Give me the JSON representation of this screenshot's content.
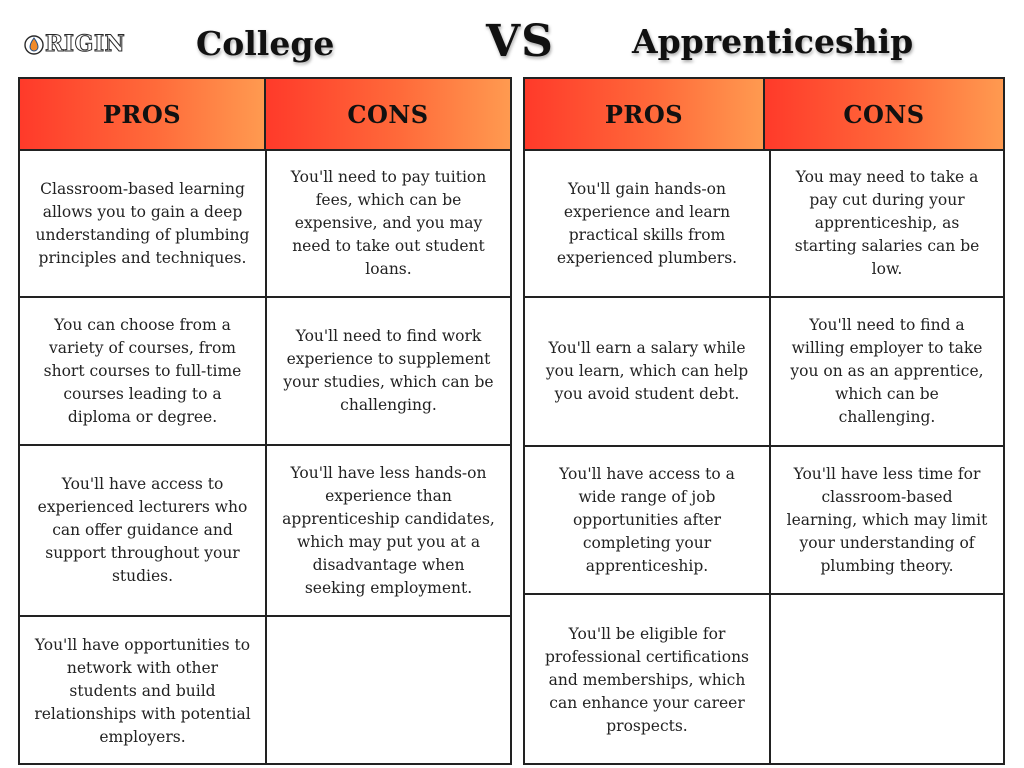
{
  "logo": {
    "text": "RIGIN"
  },
  "titles": {
    "left": "College",
    "vs": "VS",
    "right": "Apprenticeship"
  },
  "college": {
    "pros_label": "PROS",
    "cons_label": "CONS",
    "pros": [
      "Classroom-based learning allows you to gain a deep understanding of plumbing principles and techniques.",
      "You can choose from a variety of courses, from short courses to full-time courses leading to a diploma or degree.",
      "You'll have access to experienced lecturers who can offer guidance and support throughout your studies.",
      "You'll have opportunities to network with other students and build relationships with potential employers."
    ],
    "cons": [
      "You'll need to pay tuition fees, which can be expensive, and you may need to take out student loans.",
      "You'll need to find work experience to supplement your studies, which can be challenging.",
      "You'll have less hands-on experience than apprenticeship candidates, which may put you at a disadvantage when seeking employment.",
      ""
    ]
  },
  "apprenticeship": {
    "pros_label": "PROS",
    "cons_label": "CONS",
    "pros": [
      "You'll gain hands-on experience and learn practical skills from experienced plumbers.",
      "You'll earn a salary while you learn, which can help you avoid student debt.",
      "You'll have access to a wide range of job opportunities after completing your apprenticeship.",
      "You'll be eligible for professional certifications and memberships, which can enhance your career prospects."
    ],
    "cons": [
      "You may need to take a pay cut during your apprenticeship, as starting salaries can be low.",
      "You'll need to find a willing employer to take you on as an apprentice, which can be challenging.",
      "You'll have less time for classroom-based learning, which may limit your understanding of plumbing theory.",
      ""
    ]
  },
  "colors": {
    "header_gradient_start": "#ff3a2a",
    "header_gradient_end": "#ff9a50",
    "border": "#222222"
  }
}
